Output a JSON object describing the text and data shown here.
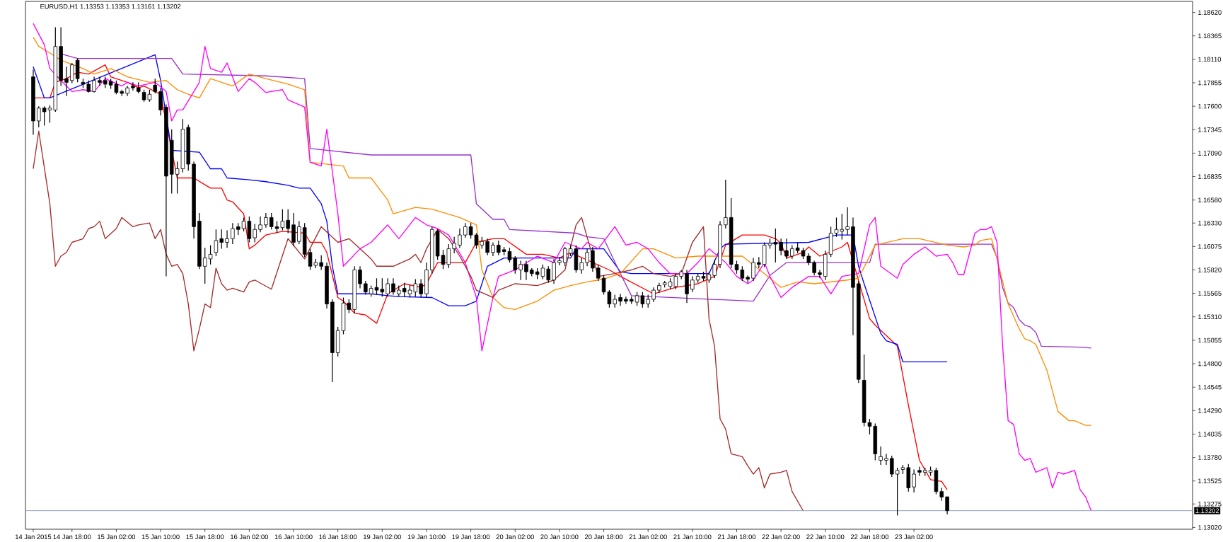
{
  "chart_data": {
    "type": "candlestick",
    "title": "EURUSD,H1  1.13353 1.13353 1.13161 1.13202",
    "categories": [
      "14 Jan 2015",
      null,
      null,
      null,
      null,
      null,
      null,
      "14 Jan 18:00",
      null,
      null,
      null,
      null,
      null,
      null,
      null,
      "15 Jan 02:00",
      null,
      null,
      null,
      null,
      null,
      null,
      null,
      "15 Jan 10:00",
      null,
      null,
      null,
      null,
      null,
      null,
      null,
      "15 Jan 18:00",
      null,
      null,
      null,
      null,
      null,
      null,
      null,
      "16 Jan 02:00",
      null,
      null,
      null,
      null,
      null,
      null,
      null,
      "16 Jan 10:00",
      null,
      null,
      null,
      null,
      null,
      null,
      null,
      "16 Jan 18:00",
      null,
      null,
      null,
      null,
      null,
      null,
      null,
      "19 Jan 02:00",
      null,
      null,
      null,
      null,
      null,
      null,
      null,
      "19 Jan 10:00",
      null,
      null,
      null,
      null,
      null,
      null,
      null,
      "19 Jan 18:00",
      null,
      null,
      null,
      null,
      null,
      null,
      null,
      "20 Jan 02:00",
      null,
      null,
      null,
      null,
      null,
      null,
      null,
      "20 Jan 10:00",
      null,
      null,
      null,
      null,
      null,
      null,
      null,
      "20 Jan 18:00",
      null,
      null,
      null,
      null,
      null,
      null,
      null,
      "21 Jan 02:00",
      null,
      null,
      null,
      null,
      null,
      null,
      null,
      "21 Jan 10:00",
      null,
      null,
      null,
      null,
      null,
      null,
      null,
      "21 Jan 18:00",
      null,
      null,
      null,
      null,
      null,
      null,
      null,
      "22 Jan 02:00",
      null,
      null,
      null,
      null,
      null,
      null,
      null,
      "22 Jan 10:00",
      null,
      null,
      null,
      null,
      null,
      null,
      null,
      "22 Jan 18:00",
      null,
      null,
      null,
      null,
      null,
      null,
      null,
      "23 Jan 02:00",
      null,
      null,
      null,
      null,
      null,
      null,
      null,
      null,
      null,
      null,
      null,
      null,
      null,
      null,
      null,
      null,
      null,
      null,
      null,
      null,
      null,
      null,
      null,
      null,
      null,
      null,
      null,
      null,
      null,
      null,
      null,
      null,
      null,
      null,
      null,
      null,
      null,
      null,
      null,
      null,
      null,
      null,
      null,
      null,
      null,
      null,
      null,
      null,
      null,
      null
    ],
    "ohlc": [
      [
        1.1792,
        1.18,
        1.1729,
        1.1744
      ],
      [
        1.1744,
        1.176,
        1.1737,
        1.1758
      ],
      [
        1.1758,
        1.176,
        1.1739,
        1.1754
      ],
      [
        1.1756,
        1.1761,
        1.1742,
        1.1758
      ],
      [
        1.1756,
        1.1846,
        1.1754,
        1.1825
      ],
      [
        1.1825,
        1.1846,
        1.1782,
        1.1788
      ],
      [
        1.179,
        1.1803,
        1.1771,
        1.1786
      ],
      [
        1.1788,
        1.1807,
        1.1785,
        1.1805
      ],
      [
        1.181,
        1.1812,
        1.1786,
        1.179
      ],
      [
        1.1786,
        1.179,
        1.178,
        1.1784
      ],
      [
        1.1784,
        1.1788,
        1.1775,
        1.1776
      ],
      [
        1.1776,
        1.1792,
        1.1775,
        1.1788
      ],
      [
        1.1788,
        1.1792,
        1.1782,
        1.1786
      ],
      [
        1.1788,
        1.1792,
        1.178,
        1.1784
      ],
      [
        1.1787,
        1.179,
        1.1779,
        1.1783
      ],
      [
        1.1784,
        1.1788,
        1.1773,
        1.1775
      ],
      [
        1.1776,
        1.1778,
        1.1771,
        1.1774
      ],
      [
        1.1774,
        1.1782,
        1.1771,
        1.178
      ],
      [
        1.1782,
        1.1786,
        1.1777,
        1.178
      ],
      [
        1.178,
        1.1786,
        1.1774,
        1.1776
      ],
      [
        1.1775,
        1.1778,
        1.1765,
        1.1767
      ],
      [
        1.1767,
        1.1778,
        1.1765,
        1.1773
      ],
      [
        1.1783,
        1.179,
        1.1774,
        1.1776
      ],
      [
        1.1776,
        1.178,
        1.175,
        1.1756
      ],
      [
        1.1759,
        1.1762,
        1.1575,
        1.1684
      ],
      [
        1.1723,
        1.1735,
        1.1665,
        1.1686
      ],
      [
        1.1686,
        1.17,
        1.1665,
        1.1692
      ],
      [
        1.1692,
        1.1746,
        1.1688,
        1.1735
      ],
      [
        1.1737,
        1.174,
        1.169,
        1.1697
      ],
      [
        1.1697,
        1.17,
        1.1616,
        1.1629
      ],
      [
        1.1635,
        1.1644,
        1.1583,
        1.1586
      ],
      [
        1.1586,
        1.1606,
        1.1567,
        1.1595
      ],
      [
        1.1594,
        1.1609,
        1.1588,
        1.1599
      ],
      [
        1.1601,
        1.1626,
        1.1597,
        1.1614
      ],
      [
        1.1616,
        1.1626,
        1.1605,
        1.1612
      ],
      [
        1.1612,
        1.1625,
        1.1606,
        1.1616
      ],
      [
        1.1616,
        1.1633,
        1.161,
        1.1627
      ],
      [
        1.1629,
        1.1633,
        1.162,
        1.1626
      ],
      [
        1.1627,
        1.1639,
        1.1624,
        1.1635
      ],
      [
        1.1635,
        1.164,
        1.1612,
        1.1616
      ],
      [
        1.1617,
        1.1632,
        1.1612,
        1.1626
      ],
      [
        1.1626,
        1.164,
        1.1623,
        1.1631
      ],
      [
        1.1631,
        1.1644,
        1.1628,
        1.1639
      ],
      [
        1.1639,
        1.1644,
        1.1626,
        1.1629
      ],
      [
        1.1629,
        1.1635,
        1.1622,
        1.1627
      ],
      [
        1.1628,
        1.1648,
        1.1625,
        1.1635
      ],
      [
        1.1636,
        1.1648,
        1.1622,
        1.1627
      ],
      [
        1.1631,
        1.1644,
        1.1608,
        1.1612
      ],
      [
        1.1613,
        1.1635,
        1.161,
        1.1629
      ],
      [
        1.1628,
        1.1633,
        1.1596,
        1.1599
      ],
      [
        1.1601,
        1.1605,
        1.1582,
        1.1586
      ],
      [
        1.1587,
        1.1594,
        1.1584,
        1.159
      ],
      [
        1.159,
        1.1598,
        1.1582,
        1.1586
      ],
      [
        1.1586,
        1.159,
        1.154,
        1.1545
      ],
      [
        1.1547,
        1.155,
        1.146,
        1.1492
      ],
      [
        1.1492,
        1.152,
        1.1488,
        1.1516
      ],
      [
        1.1516,
        1.1552,
        1.1512,
        1.1546
      ],
      [
        1.1546,
        1.155,
        1.1535,
        1.1539
      ],
      [
        1.1539,
        1.1586,
        1.1535,
        1.1582
      ],
      [
        1.1582,
        1.1586,
        1.1562,
        1.1567
      ],
      [
        1.1567,
        1.157,
        1.1555,
        1.1558
      ],
      [
        1.1556,
        1.1565,
        1.1553,
        1.1562
      ],
      [
        1.1563,
        1.1573,
        1.1555,
        1.156
      ],
      [
        1.1561,
        1.1573,
        1.1553,
        1.1558
      ],
      [
        1.1556,
        1.1573,
        1.1553,
        1.1567
      ],
      [
        1.1567,
        1.1573,
        1.1555,
        1.1558
      ],
      [
        1.1556,
        1.1565,
        1.1553,
        1.156
      ],
      [
        1.1562,
        1.1568,
        1.1553,
        1.1558
      ],
      [
        1.1556,
        1.1566,
        1.1552,
        1.156
      ],
      [
        1.1558,
        1.1572,
        1.1553,
        1.1567
      ],
      [
        1.1567,
        1.1572,
        1.1552,
        1.1556
      ],
      [
        1.1556,
        1.159,
        1.1552,
        1.1582
      ],
      [
        1.1582,
        1.1629,
        1.1578,
        1.1626
      ],
      [
        1.1624,
        1.1626,
        1.1593,
        1.1597
      ],
      [
        1.1598,
        1.1604,
        1.1583,
        1.1588
      ],
      [
        1.1588,
        1.161,
        1.1584,
        1.1605
      ],
      [
        1.1605,
        1.1618,
        1.16,
        1.1611
      ],
      [
        1.1609,
        1.1627,
        1.1606,
        1.162
      ],
      [
        1.162,
        1.1633,
        1.1617,
        1.1629
      ],
      [
        1.1629,
        1.1633,
        1.1616,
        1.162
      ],
      [
        1.162,
        1.1622,
        1.1605,
        1.1609
      ],
      [
        1.1609,
        1.1618,
        1.1605,
        1.1613
      ],
      [
        1.1613,
        1.1616,
        1.1598,
        1.1601
      ],
      [
        1.1601,
        1.1612,
        1.1597,
        1.1609
      ],
      [
        1.1609,
        1.1614,
        1.1598,
        1.1601
      ],
      [
        1.1604,
        1.1607,
        1.1598,
        1.1602
      ],
      [
        1.1602,
        1.1606,
        1.159,
        1.1593
      ],
      [
        1.1595,
        1.1597,
        1.1578,
        1.1582
      ],
      [
        1.1582,
        1.1592,
        1.1571,
        1.1588
      ],
      [
        1.1588,
        1.1592,
        1.1571,
        1.158
      ],
      [
        1.1582,
        1.1584,
        1.1575,
        1.1578
      ],
      [
        1.158,
        1.1584,
        1.1572,
        1.1577
      ],
      [
        1.1575,
        1.1588,
        1.1572,
        1.1584
      ],
      [
        1.1583,
        1.1586,
        1.1568,
        1.1571
      ],
      [
        1.1571,
        1.1594,
        1.1567,
        1.159
      ],
      [
        1.159,
        1.1596,
        1.1587,
        1.1592
      ],
      [
        1.159,
        1.1607,
        1.1586,
        1.1605
      ],
      [
        1.16,
        1.1609,
        1.1597,
        1.1605
      ],
      [
        1.1605,
        1.1609,
        1.1579,
        1.1582
      ],
      [
        1.1582,
        1.1595,
        1.1578,
        1.159
      ],
      [
        1.159,
        1.1605,
        1.1586,
        1.1601
      ],
      [
        1.1603,
        1.1607,
        1.158,
        1.1584
      ],
      [
        1.1584,
        1.1588,
        1.157,
        1.1573
      ],
      [
        1.1573,
        1.1576,
        1.1555,
        1.1558
      ],
      [
        1.1558,
        1.156,
        1.1541,
        1.1545
      ],
      [
        1.1545,
        1.1555,
        1.1541,
        1.155
      ],
      [
        1.1552,
        1.1556,
        1.1543,
        1.1548
      ],
      [
        1.155,
        1.1553,
        1.1545,
        1.1548
      ],
      [
        1.155,
        1.1553,
        1.1545,
        1.1548
      ],
      [
        1.1547,
        1.1558,
        1.1543,
        1.1554
      ],
      [
        1.1554,
        1.1558,
        1.1541,
        1.1545
      ],
      [
        1.1545,
        1.1555,
        1.1541,
        1.155
      ],
      [
        1.155,
        1.1563,
        1.1547,
        1.156
      ],
      [
        1.156,
        1.1568,
        1.1557,
        1.1565
      ],
      [
        1.1566,
        1.157,
        1.1563,
        1.1568
      ],
      [
        1.1564,
        1.1573,
        1.1561,
        1.1569
      ],
      [
        1.1564,
        1.1578,
        1.1561,
        1.1575
      ],
      [
        1.1575,
        1.1582,
        1.1572,
        1.158
      ],
      [
        1.1578,
        1.1582,
        1.1546,
        1.1556
      ],
      [
        1.1561,
        1.1575,
        1.1558,
        1.1571
      ],
      [
        1.1571,
        1.1578,
        1.1568,
        1.1575
      ],
      [
        1.1575,
        1.158,
        1.157,
        1.1573
      ],
      [
        1.1571,
        1.158,
        1.1568,
        1.1577
      ],
      [
        1.1576,
        1.1593,
        1.1573,
        1.1588
      ],
      [
        1.1588,
        1.1635,
        1.1584,
        1.1631
      ],
      [
        1.1631,
        1.168,
        1.1627,
        1.1639
      ],
      [
        1.1639,
        1.166,
        1.1584,
        1.1588
      ],
      [
        1.1588,
        1.1592,
        1.1578,
        1.1582
      ],
      [
        1.1582,
        1.1586,
        1.157,
        1.1573
      ],
      [
        1.1574,
        1.1576,
        1.1568,
        1.1572
      ],
      [
        1.1573,
        1.1595,
        1.157,
        1.159
      ],
      [
        1.159,
        1.1596,
        1.1584,
        1.1588
      ],
      [
        1.1588,
        1.1612,
        1.1585,
        1.1609
      ],
      [
        1.1609,
        1.1616,
        1.1605,
        1.1611
      ],
      [
        1.1612,
        1.1627,
        1.159,
        1.161
      ],
      [
        1.1612,
        1.1616,
        1.1598,
        1.1603
      ],
      [
        1.1603,
        1.1616,
        1.1594,
        1.1597
      ],
      [
        1.1597,
        1.1609,
        1.1594,
        1.1605
      ],
      [
        1.1606,
        1.1612,
        1.16,
        1.1603
      ],
      [
        1.1603,
        1.1606,
        1.1594,
        1.1597
      ],
      [
        1.1597,
        1.16,
        1.1587,
        1.159
      ],
      [
        1.159,
        1.1592,
        1.1576,
        1.1579
      ],
      [
        1.1579,
        1.1582,
        1.1573,
        1.1577
      ],
      [
        1.1575,
        1.1603,
        1.1571,
        1.1599
      ],
      [
        1.1599,
        1.1629,
        1.1596,
        1.1622
      ],
      [
        1.1622,
        1.1639,
        1.1618,
        1.1626
      ],
      [
        1.1624,
        1.1643,
        1.1615,
        1.1626
      ],
      [
        1.1626,
        1.165,
        1.162,
        1.1629
      ],
      [
        1.1629,
        1.1639,
        1.1511,
        1.1563
      ],
      [
        1.1567,
        1.157,
        1.1459,
        1.1463
      ],
      [
        1.1462,
        1.149,
        1.1412,
        1.1416
      ],
      [
        1.1416,
        1.142,
        1.1403,
        1.1412
      ],
      [
        1.1412,
        1.1415,
        1.1375,
        1.1382
      ],
      [
        1.1375,
        1.139,
        1.137,
        1.1379
      ],
      [
        1.1375,
        1.1382,
        1.137,
        1.1377
      ],
      [
        1.1377,
        1.138,
        1.1357,
        1.136
      ],
      [
        1.136,
        1.1367,
        1.1315,
        1.1364
      ],
      [
        1.1365,
        1.137,
        1.136,
        1.1367
      ],
      [
        1.1367,
        1.1371,
        1.1341,
        1.1345
      ],
      [
        1.1346,
        1.1365,
        1.134,
        1.136
      ],
      [
        1.1364,
        1.1368,
        1.1358,
        1.1362
      ],
      [
        1.1362,
        1.1367,
        1.1358,
        1.1364
      ],
      [
        1.1362,
        1.1368,
        1.1358,
        1.1364
      ],
      [
        1.1364,
        1.1367,
        1.1338,
        1.1341
      ],
      [
        1.1341,
        1.1345,
        1.1331,
        1.1335
      ],
      [
        1.13353,
        1.13353,
        1.13161,
        1.13202
      ],
      null,
      null,
      null,
      null,
      null,
      null,
      null,
      null,
      null,
      null,
      null,
      null,
      null,
      null,
      null,
      null,
      null,
      null,
      null,
      null,
      null,
      null,
      null,
      null,
      null,
      null,
      null,
      null,
      null,
      null,
      null,
      null,
      null,
      null,
      null,
      null,
      null,
      null,
      null,
      null,
      null,
      null,
      null,
      null
    ],
    "series": [
      {
        "type": "line",
        "color": "#ff0000",
        "values": [
          1.1769,
          null,
          null,
          1.1769,
          1.1786,
          null,
          1.179,
          null,
          1.1797,
          null,
          1.1795,
          null,
          null,
          1.1805,
          1.1792,
          null,
          null,
          1.1786,
          null,
          1.178,
          1.1782,
          null,
          1.1776,
          1.1773,
          null,
          null,
          1.1682,
          null,
          null,
          1.1682,
          null,
          null,
          1.1671,
          null,
          1.1671,
          1.1658,
          1.1656,
          null,
          1.1643,
          1.1605,
          1.1609,
          null,
          1.162,
          null,
          null,
          1.1624,
          null,
          null,
          null,
          1.1622,
          1.1612,
          null,
          1.1612,
          1.1601,
          null,
          1.1552,
          1.1548,
          null,
          1.1535,
          null,
          1.1533,
          null,
          1.1524,
          null,
          1.1556,
          null,
          null,
          1.1567,
          null,
          null,
          1.1563,
          1.1567,
          null,
          1.159,
          null,
          null,
          null,
          null,
          1.159,
          null,
          1.1612,
          null,
          null,
          1.1616,
          null,
          1.1616,
          null,
          null,
          null,
          1.1599,
          null,
          null,
          1.1599,
          null,
          null,
          1.1595,
          null,
          1.1601,
          null,
          null,
          null,
          null,
          null,
          null,
          1.1582,
          null,
          1.1575,
          null,
          null,
          null,
          null,
          null,
          1.1556,
          null,
          null,
          null,
          1.1563,
          null,
          null,
          null,
          1.1567,
          null,
          null,
          1.1575,
          null,
          1.1609,
          null,
          null,
          1.162,
          null,
          null,
          null,
          1.162,
          null,
          1.1616,
          1.1611,
          1.1595,
          null,
          null,
          1.1601,
          1.1607,
          null,
          1.1597,
          null,
          null,
          null,
          1.1607,
          1.1612,
          null,
          null,
          null,
          1.1529,
          1.1522,
          null,
          null,
          1.1505,
          1.1499,
          null,
          1.1435,
          null,
          1.1375,
          null,
          1.1354,
          null,
          1.1352,
          1.1343,
          null,
          null,
          null,
          null,
          null,
          null,
          null,
          null,
          null,
          null,
          null,
          null,
          null,
          null,
          null,
          null,
          null,
          null,
          null,
          null,
          null,
          null,
          null,
          null,
          null,
          null,
          null,
          null,
          null,
          null,
          null,
          null,
          null,
          null,
          null,
          null,
          null,
          null,
          null,
          null,
          null,
          null,
          null,
          null
        ]
      },
      {
        "type": "line",
        "color": "#0000ff",
        "values": [
          1.1803,
          1.1786,
          1.1769,
          1.1769,
          null,
          null,
          null,
          null,
          null,
          null,
          null,
          null,
          null,
          null,
          null,
          null,
          null,
          null,
          null,
          null,
          null,
          null,
          1.1816,
          1.1788,
          null,
          1.1712,
          null,
          null,
          null,
          null,
          1.171,
          null,
          1.1692,
          null,
          1.1692,
          1.1682,
          null,
          null,
          null,
          1.168,
          null,
          null,
          1.1678,
          null,
          null,
          null,
          1.1674,
          null,
          1.1671,
          null,
          1.1671,
          null,
          1.1654,
          1.1635,
          1.1586,
          1.1556,
          null,
          null,
          null,
          null,
          null,
          1.1556,
          null,
          null,
          1.1554,
          null,
          1.1553,
          null,
          null,
          null,
          null,
          null,
          1.1552,
          null,
          null,
          1.1543,
          null,
          null,
          1.1543,
          null,
          1.1548,
          1.1567,
          1.1586,
          null,
          null,
          1.1595,
          null,
          null,
          null,
          null,
          null,
          null,
          null,
          null,
          null,
          null,
          null,
          1.1595,
          1.1605,
          null,
          null,
          null,
          null,
          1.1605,
          null,
          null,
          1.158,
          null,
          1.1578,
          null,
          null,
          null,
          null,
          null,
          null,
          null,
          null,
          null,
          null,
          null,
          null,
          null,
          1.1578,
          null,
          1.1605,
          1.161,
          null,
          null,
          null,
          null,
          null,
          null,
          null,
          null,
          null,
          null,
          null,
          null,
          null,
          null,
          1.1612,
          null,
          null,
          null,
          null,
          1.162,
          null,
          null,
          1.162,
          1.1586,
          1.1567,
          null,
          null,
          1.1513,
          1.1505,
          null,
          1.1501,
          1.1482,
          null,
          null,
          null,
          null,
          null,
          null,
          null,
          1.1482,
          null,
          null,
          null,
          null,
          null,
          null,
          null,
          null,
          null,
          null,
          null,
          null,
          null,
          null,
          null,
          null,
          null,
          null,
          null,
          null,
          null,
          null,
          null,
          null,
          null,
          null,
          null,
          null,
          null,
          null,
          null,
          null,
          null,
          null,
          null,
          null,
          null,
          null,
          null,
          null,
          null,
          null,
          null,
          null
        ]
      },
      {
        "type": "line",
        "color": "#9932cc",
        "values": [
          null,
          null,
          null,
          null,
          null,
          1.1817,
          null,
          null,
          1.1812,
          null,
          null,
          null,
          null,
          null,
          null,
          null,
          null,
          null,
          null,
          null,
          null,
          null,
          null,
          null,
          null,
          1.1812,
          null,
          1.1795,
          null,
          null,
          null,
          null,
          null,
          null,
          null,
          null,
          null,
          null,
          null,
          null,
          null,
          null,
          1.1793,
          null,
          null,
          null,
          null,
          null,
          null,
          1.179,
          1.1714,
          null,
          null,
          null,
          null,
          null,
          null,
          null,
          null,
          null,
          null,
          1.1707,
          null,
          null,
          null,
          null,
          null,
          null,
          null,
          null,
          null,
          null,
          null,
          null,
          null,
          null,
          null,
          null,
          null,
          1.1707,
          1.1654,
          null,
          null,
          1.1637,
          null,
          1.1637,
          1.1626,
          null,
          null,
          null,
          null,
          null,
          null,
          null,
          null,
          null,
          null,
          null,
          1.1622,
          null,
          1.1618,
          null,
          null,
          1.1616,
          null,
          null,
          1.1578,
          null,
          1.1554,
          null,
          null,
          null,
          null,
          null,
          null,
          null,
          null,
          null,
          null,
          null,
          null,
          null,
          null,
          null,
          null,
          null,
          null,
          null,
          null,
          null,
          1.1548,
          null,
          null,
          1.1576,
          null,
          null,
          1.159,
          null,
          null,
          null,
          null,
          null,
          null,
          null,
          null,
          null,
          null,
          null,
          null,
          null,
          null,
          1.159,
          1.161,
          null,
          null,
          null,
          null,
          null,
          null,
          null,
          null,
          null,
          null,
          null,
          null,
          null,
          null,
          null,
          null,
          null,
          null,
          null,
          null,
          1.161,
          1.1595,
          1.1563,
          1.1546,
          1.1541,
          1.1528,
          1.1522,
          1.152,
          1.1514,
          1.1499,
          null,
          null,
          null,
          null,
          null,
          null,
          1.1498,
          null,
          1.1497,
          null,
          null,
          null,
          null,
          null,
          null,
          null,
          null,
          null,
          null,
          null,
          null,
          null,
          null,
          null,
          null,
          null,
          null
        ]
      },
      {
        "type": "line",
        "color": "#ff8c00",
        "values": [
          1.1835,
          1.1825,
          null,
          1.1818,
          null,
          1.181,
          null,
          null,
          null,
          1.1801,
          null,
          1.1795,
          null,
          null,
          1.1801,
          null,
          null,
          1.1792,
          null,
          null,
          null,
          1.1786,
          null,
          null,
          1.1788,
          null,
          1.1778,
          null,
          1.1773,
          null,
          1.1769,
          null,
          1.179,
          null,
          null,
          null,
          1.1782,
          null,
          null,
          1.1795,
          null,
          null,
          1.179,
          null,
          null,
          null,
          1.1784,
          null,
          null,
          1.1778,
          1.1699,
          null,
          null,
          null,
          null,
          null,
          1.1695,
          1.1682,
          null,
          null,
          null,
          1.1682,
          null,
          null,
          1.1658,
          1.1643,
          null,
          null,
          null,
          1.165,
          null,
          null,
          1.1648,
          null,
          null,
          null,
          null,
          1.1639,
          null,
          null,
          1.1631,
          1.1582,
          null,
          1.1552,
          null,
          1.1541,
          null,
          1.1539,
          null,
          null,
          null,
          1.1548,
          null,
          null,
          1.156,
          null,
          null,
          1.1565,
          null,
          null,
          1.1569,
          null,
          null,
          1.1572,
          null,
          null,
          1.1578,
          null,
          null,
          null,
          1.1605,
          null,
          1.1605,
          null,
          null,
          null,
          1.1595,
          null,
          null,
          null,
          1.1597,
          null,
          null,
          null,
          null,
          null,
          null,
          null,
          1.1597,
          null,
          null,
          null,
          1.1578,
          null,
          null,
          1.1563,
          null,
          null,
          1.1569,
          null,
          null,
          1.1567,
          null,
          null,
          null,
          null,
          null,
          1.1571,
          null,
          1.1573,
          null,
          null,
          1.1609,
          null,
          null,
          null,
          null,
          1.1616,
          null,
          null,
          1.1616,
          null,
          null,
          null,
          null,
          1.1609,
          null,
          null,
          1.1607,
          null,
          1.1609,
          1.1614,
          null,
          1.1616,
          1.1594,
          null,
          1.1545,
          null,
          1.1518,
          1.1507,
          1.1505,
          1.1501,
          null,
          1.1473,
          null,
          1.1428,
          null,
          1.1418,
          1.1418,
          null,
          1.1413,
          1.1413,
          null,
          null,
          null,
          null,
          null,
          null,
          null,
          null,
          null,
          null,
          null,
          null,
          null,
          null,
          null,
          null,
          null,
          null
        ]
      },
      {
        "type": "line",
        "color": "#ff00ff",
        "values": [
          1.185,
          null,
          1.1827,
          1.1801,
          null,
          1.1788,
          null,
          1.1776,
          null,
          1.1778,
          null,
          1.1776,
          null,
          1.179,
          null,
          null,
          1.1782,
          1.1786,
          null,
          1.1782,
          null,
          null,
          1.1786,
          null,
          1.1776,
          1.1744,
          1.1756,
          1.1756,
          null,
          null,
          1.1786,
          1.1825,
          1.1801,
          null,
          1.1797,
          1.1807,
          null,
          1.1776,
          null,
          1.179,
          1.1786,
          null,
          1.1775,
          null,
          null,
          1.1778,
          1.1767,
          null,
          null,
          1.1759,
          1.1699,
          null,
          1.1695,
          1.1735,
          null,
          1.1643,
          1.1586,
          null,
          null,
          1.1605,
          null,
          1.1612,
          null,
          null,
          1.1631,
          null,
          1.1616,
          null,
          null,
          1.1639,
          null,
          1.1631,
          null,
          1.1627,
          null,
          1.162,
          null,
          null,
          1.159,
          null,
          1.1552,
          1.1494,
          null,
          1.1552,
          1.1575,
          null,
          null,
          1.1582,
          null,
          null,
          null,
          1.1597,
          null,
          null,
          1.159,
          null,
          1.1612,
          null,
          null,
          1.1605,
          1.1612,
          null,
          1.1605,
          null,
          null,
          1.1629,
          null,
          1.1609,
          null,
          1.1612,
          null,
          1.1605,
          null,
          1.159,
          null,
          1.1578,
          null,
          null,
          1.1578,
          null,
          1.159,
          null,
          1.1605,
          null,
          null,
          1.159,
          null,
          1.1575,
          null,
          1.1567,
          1.1571,
          null,
          1.159,
          1.1575,
          null,
          1.1552,
          null,
          1.1563,
          null,
          null,
          1.1575,
          null,
          1.1575,
          null,
          1.1556,
          null,
          1.1575,
          null,
          null,
          1.1578,
          null,
          1.1631,
          1.1639,
          1.1586,
          null,
          null,
          1.1573,
          1.1588,
          null,
          1.1599,
          null,
          1.1607,
          null,
          1.1597,
          null,
          1.1599,
          1.159,
          1.1577,
          1.1577,
          null,
          1.1622,
          1.1626,
          1.1626,
          1.1629,
          1.1612,
          1.15,
          1.1418,
          1.1414,
          1.1382,
          1.1375,
          1.1377,
          1.1362,
          null,
          1.1367,
          1.1345,
          1.1362,
          1.136,
          null,
          1.1364,
          1.1343,
          1.1335,
          1.132,
          null,
          null,
          null,
          null,
          null,
          null,
          null,
          null,
          null,
          null,
          null,
          null,
          null,
          null,
          null,
          null,
          null,
          null
        ]
      },
      {
        "type": "line",
        "color": "#a52a2a",
        "values": [
          1.1692,
          1.1733,
          null,
          1.1654,
          1.1586,
          1.1597,
          1.1601,
          1.1612,
          null,
          1.1616,
          1.1627,
          1.1629,
          1.1635,
          1.1616,
          null,
          1.1627,
          1.1639,
          null,
          1.1629,
          1.1631,
          null,
          1.1633,
          1.1616,
          1.1626,
          1.1599,
          1.1586,
          1.1588,
          1.1578,
          1.1545,
          1.1494,
          1.1518,
          1.1545,
          1.1541,
          1.1584,
          1.1567,
          1.156,
          1.1562,
          null,
          1.1558,
          1.1569,
          1.1571,
          null,
          null,
          1.1561,
          null,
          null,
          1.1616,
          null,
          null,
          1.1594,
          null,
          null,
          1.1629,
          null,
          null,
          1.1612,
          null,
          1.1616,
          null,
          1.1605,
          null,
          1.1594,
          1.1586,
          null,
          null,
          1.1586,
          null,
          null,
          1.1594,
          1.1599,
          1.159,
          1.1605,
          null,
          1.1626,
          null,
          1.1616,
          null,
          1.1597,
          null,
          1.1575,
          1.156,
          null,
          null,
          1.1552,
          1.156,
          null,
          null,
          1.1567,
          null,
          null,
          null,
          1.1565,
          null,
          null,
          1.1571,
          null,
          1.1582,
          null,
          1.1631,
          1.1639,
          null,
          null,
          1.1575,
          null,
          null,
          1.1578,
          null,
          null,
          1.1582,
          null,
          1.1586,
          null,
          1.1578,
          null,
          null,
          1.1575,
          null,
          1.1578,
          null,
          1.1612,
          null,
          1.1629,
          1.1529,
          1.1499,
          1.142,
          1.1409,
          1.1382,
          null,
          1.1379,
          1.1369,
          1.136,
          1.1367,
          1.1345,
          1.136,
          null,
          1.1362,
          1.1364,
          1.1341,
          null,
          1.132,
          null,
          null,
          null,
          null,
          null,
          null,
          null,
          null,
          null,
          null,
          null,
          null,
          null,
          null,
          null,
          null,
          null,
          null,
          null,
          null,
          null,
          null,
          null,
          null,
          null,
          null,
          null,
          null,
          null,
          null,
          null,
          null,
          null,
          null,
          null,
          null,
          null,
          null,
          null,
          null,
          null,
          null,
          null,
          null,
          null,
          null,
          null,
          null,
          null,
          null,
          null,
          null,
          null,
          null,
          null,
          null,
          null,
          null,
          null,
          null,
          null,
          null,
          null,
          null,
          null,
          null,
          null,
          null,
          null,
          null
        ]
      }
    ],
    "ylim": [
      1.13,
      1.1874
    ],
    "yticks": [
      {
        "value": 1.1862,
        "label": "1.18620"
      },
      1.18365,
      {
        "value": 1.1811,
        "label": "1.18110"
      },
      1.17855,
      {
        "value": 1.176,
        "label": "1.17600"
      },
      1.17345,
      {
        "value": 1.1709,
        "label": "1.17090"
      },
      1.16835,
      {
        "value": 1.1658,
        "label": "1.16580"
      },
      {
        "value": 1.1633,
        "label": "1.16330"
      },
      1.16075,
      {
        "value": 1.1582,
        "label": "1.15820"
      },
      1.15565,
      {
        "value": 1.1531,
        "label": "1.15310"
      },
      1.15055,
      {
        "value": 1.148,
        "label": "1.14800"
      },
      1.14545,
      {
        "value": 1.1429,
        "label": "1.14290"
      },
      1.14035,
      {
        "value": 1.1378,
        "label": "1.13780"
      },
      1.13525,
      1.13275,
      {
        "value": 1.1302,
        "label": "1.13020"
      }
    ],
    "ref_lines": [
      {
        "axis": "y",
        "value": 1.13202,
        "label": "1.13202",
        "color": "#8fa0b4"
      }
    ],
    "grid": false
  }
}
